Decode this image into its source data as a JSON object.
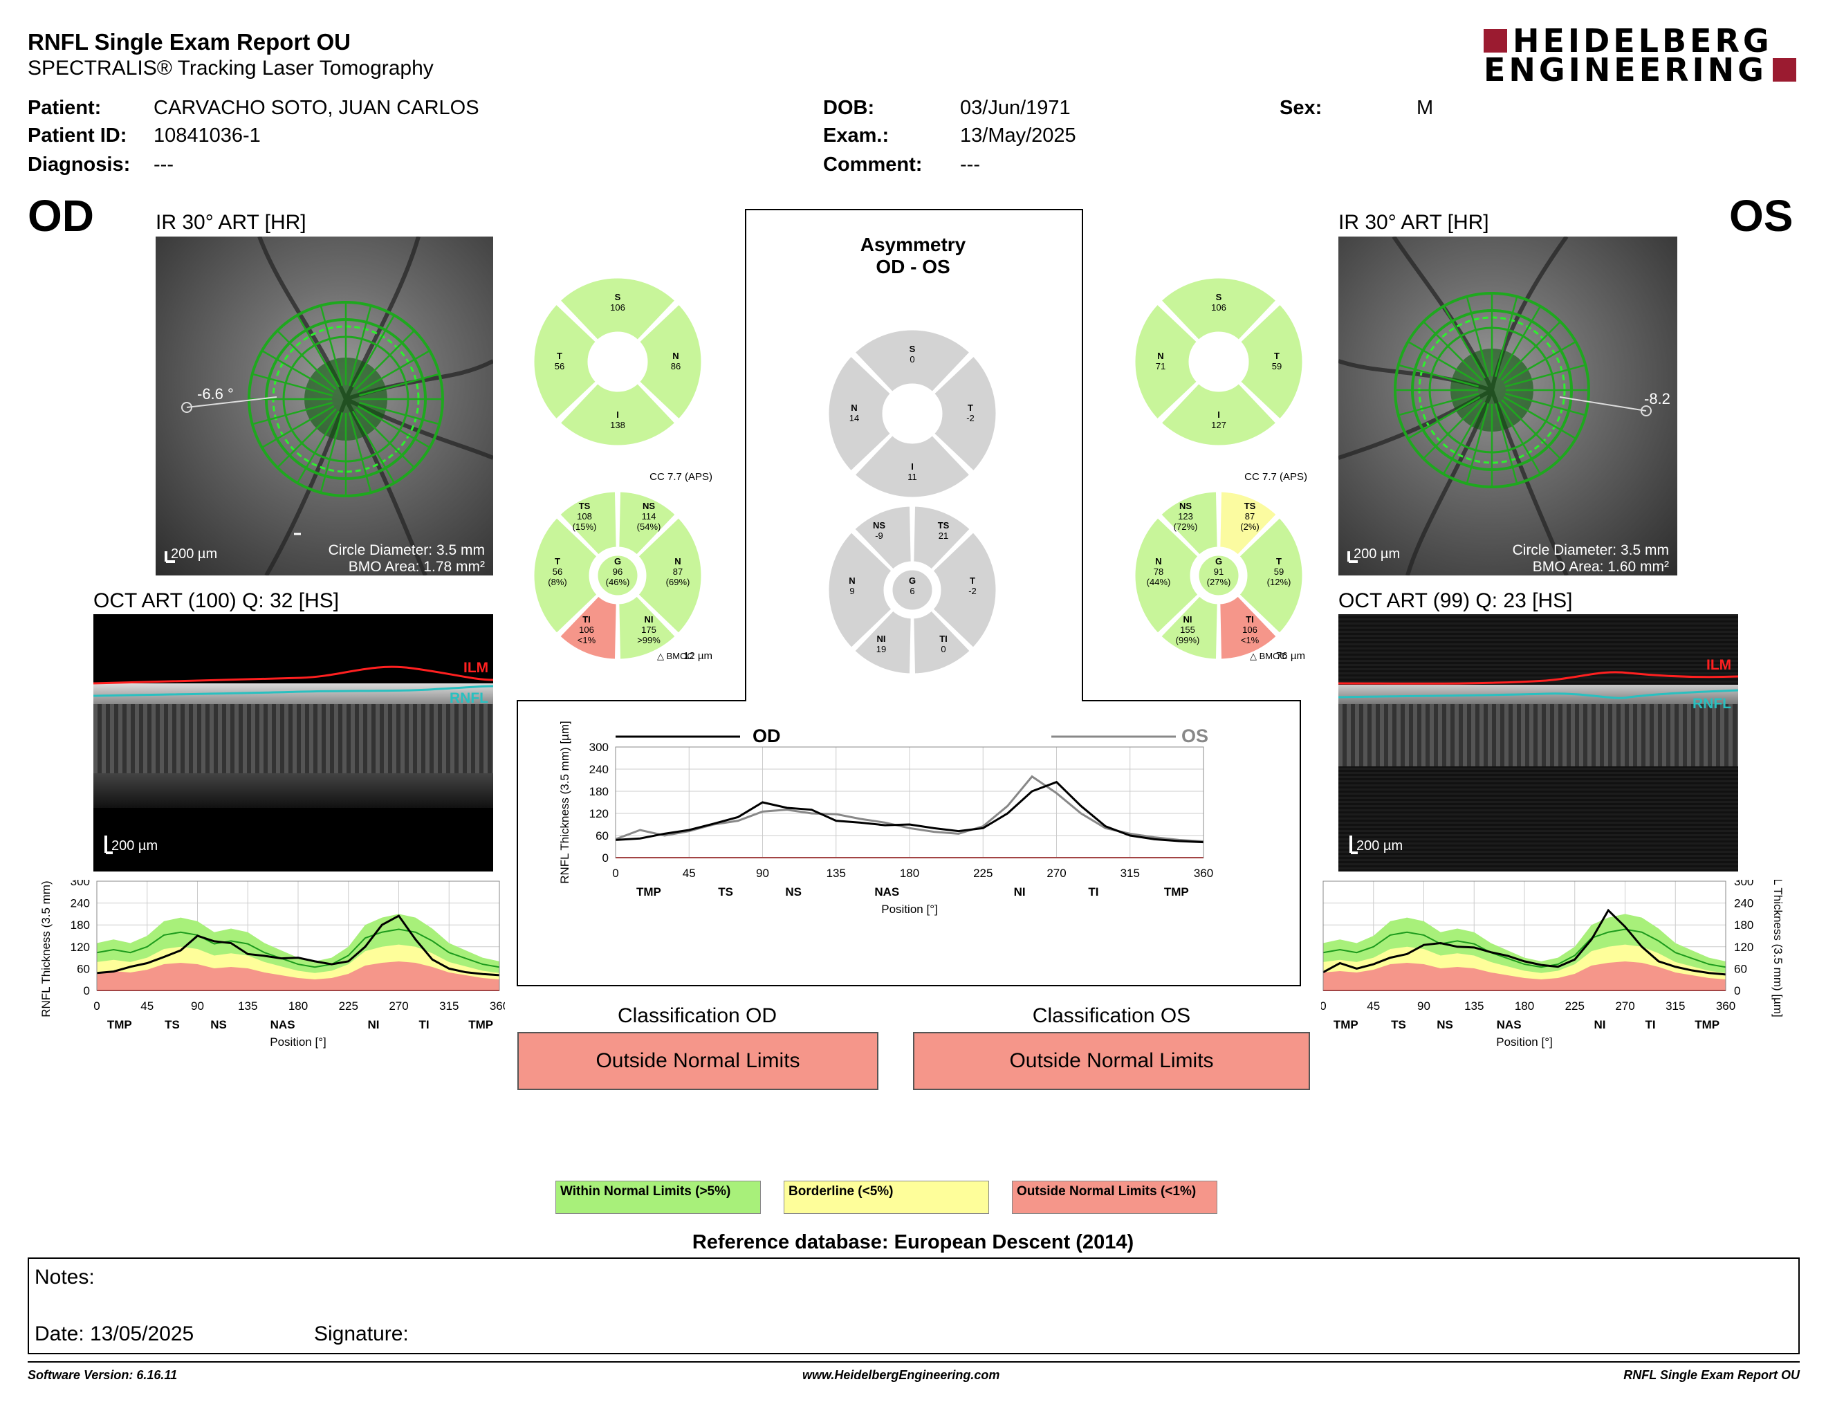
{
  "report": {
    "title": "RNFL Single Exam Report OU",
    "subtitle": "SPECTRALIS® Tracking Laser Tomography",
    "logo_line1": "HEIDELBERG",
    "logo_line2": "ENGINEERING",
    "brand_color": "#9b1b30"
  },
  "patient": {
    "patient_label": "Patient:",
    "patient_name": "CARVACHO SOTO, JUAN CARLOS",
    "id_label": "Patient ID:",
    "id": "10841036-1",
    "diagnosis_label": "Diagnosis:",
    "diagnosis": "---",
    "dob_label": "DOB:",
    "dob": "03/Jun/1971",
    "exam_label": "Exam.:",
    "exam": "13/May/2025",
    "comment_label": "Comment:",
    "comment": "---",
    "sex_label": "Sex:",
    "sex": "M"
  },
  "od": {
    "eye": "OD",
    "ir_title": "IR 30° ART [HR]",
    "angle": "-6.6 °",
    "scale": "200 µm",
    "circle_diameter": "Circle Diameter: 3.5 mm",
    "bmo_area": "BMO Area: 1.78 mm²",
    "oct_title": "OCT ART (100) Q: 32 [HS]",
    "cc": "CC 7.7 (APS)",
    "bmo_offset": "12 µm",
    "quadrants": {
      "S": "106",
      "T": "56",
      "N": "86",
      "I": "138"
    },
    "sectors": {
      "TS": [
        "108",
        "(15%)"
      ],
      "NS": [
        "114",
        "(54%)"
      ],
      "T": [
        "56",
        "(8%)"
      ],
      "G": [
        "96",
        "(46%)"
      ],
      "N": [
        "87",
        "(69%)"
      ],
      "TI": [
        "106",
        "<1%"
      ],
      "NI": [
        "175",
        ">99%"
      ]
    }
  },
  "os": {
    "eye": "OS",
    "ir_title": "IR 30° ART [HR]",
    "angle": "-8.2",
    "scale": "200 µm",
    "circle_diameter": "Circle Diameter: 3.5 mm",
    "bmo_area": "BMO Area: 1.60 mm²",
    "oct_title": "OCT ART (99) Q: 23 [HS]",
    "cc": "CC 7.7 (APS)",
    "bmo_offset": "76 µm",
    "quadrants": {
      "S": "106",
      "N": "71",
      "T": "59",
      "I": "127"
    },
    "sectors": {
      "NS": [
        "123",
        "(72%)"
      ],
      "TS": [
        "87",
        "(2%)"
      ],
      "N": [
        "78",
        "(44%)"
      ],
      "G": [
        "91",
        "(27%)"
      ],
      "T": [
        "59",
        "(12%)"
      ],
      "NI": [
        "155",
        "(99%)"
      ],
      "TI": [
        "106",
        "<1%"
      ]
    }
  },
  "asym": {
    "title1": "Asymmetry",
    "title2": "OD - OS",
    "quadrants": {
      "S": "0",
      "N": "14",
      "T": "-2",
      "I": "11"
    },
    "sectors": {
      "NS": "-9",
      "TS": "21",
      "N": "9",
      "G": "6",
      "T": "-2",
      "NI": "19",
      "TI": "0"
    }
  },
  "bmo_label": "BMOC",
  "oct_labels": {
    "ilm": "ILM",
    "rnfl": "RNFL"
  },
  "chart_axis": {
    "ylabel": "RNFL Thickness (3.5 mm) [µm]",
    "xlabel": "Position [°]",
    "yticks": [
      "0",
      "60",
      "120",
      "180",
      "240",
      "300"
    ],
    "xticks": [
      "0",
      "45",
      "90",
      "135",
      "180",
      "225",
      "270",
      "315",
      "360"
    ],
    "regions": [
      "TMP",
      "TS",
      "NS",
      "NAS",
      "NI",
      "TI",
      "TMP"
    ]
  },
  "compare_legend": {
    "od": "OD",
    "os": "OS"
  },
  "classification": {
    "od_title": "Classification OD",
    "od_value": "Outside Normal Limits",
    "os_title": "Classification OS",
    "os_value": "Outside Normal Limits"
  },
  "legend": {
    "within": "Within Normal Limits (>5%)",
    "borderline": "Borderline (<5%)",
    "outside": "Outside Normal Limits (<1%)",
    "colors": {
      "within": "#a8f07a",
      "borderline": "#fefe9a",
      "outside": "#f5968a",
      "sector_green": "#c8f59a",
      "sector_red": "#f5968a",
      "sector_yellow": "#fbfba0",
      "sector_grey": "#d3d3d3"
    }
  },
  "reference": "Reference database: European Descent (2014)",
  "notes": {
    "notes_label": "Notes:",
    "date_label": "Date: 13/05/2025",
    "signature_label": "Signature:"
  },
  "footer": {
    "version": "Software Version: 6.16.11",
    "url": "www.HeidelbergEngineering.com",
    "name": "RNFL Single Exam Report OU"
  },
  "chart_data": [
    {
      "type": "line",
      "title": "OD",
      "xlabel": "Position [°]",
      "ylabel": "RNFL Thickness (3.5 mm) [µm]",
      "xlim": [
        0,
        360
      ],
      "ylim": [
        0,
        300
      ],
      "x": [
        0,
        15,
        30,
        45,
        60,
        75,
        90,
        105,
        120,
        135,
        150,
        165,
        180,
        195,
        210,
        225,
        240,
        255,
        270,
        285,
        300,
        315,
        330,
        345,
        360
      ],
      "series": [
        {
          "name": "OD",
          "values": [
            48,
            52,
            65,
            75,
            92,
            110,
            150,
            135,
            130,
            100,
            95,
            88,
            90,
            80,
            72,
            80,
            120,
            180,
            205,
            140,
            85,
            60,
            50,
            45,
            42
          ]
        }
      ]
    },
    {
      "type": "line",
      "title": "OS",
      "xlabel": "Position [°]",
      "ylabel": "RNFL Thickness (3.5 mm) [µm]",
      "xlim": [
        0,
        360
      ],
      "ylim": [
        0,
        300
      ],
      "x": [
        0,
        15,
        30,
        45,
        60,
        75,
        90,
        105,
        120,
        135,
        150,
        165,
        180,
        195,
        210,
        225,
        240,
        255,
        270,
        285,
        300,
        315,
        330,
        345,
        360
      ],
      "series": [
        {
          "name": "OS",
          "values": [
            50,
            75,
            60,
            72,
            90,
            100,
            125,
            130,
            120,
            118,
            105,
            95,
            80,
            70,
            65,
            85,
            140,
            220,
            175,
            120,
            80,
            65,
            55,
            48,
            44
          ]
        }
      ]
    },
    {
      "type": "line",
      "title": "OD vs OS",
      "xlabel": "Position [°]",
      "ylabel": "RNFL Thickness (3.5 mm) [µm]",
      "xlim": [
        0,
        360
      ],
      "ylim": [
        0,
        300
      ],
      "x": [
        0,
        15,
        30,
        45,
        60,
        75,
        90,
        105,
        120,
        135,
        150,
        165,
        180,
        195,
        210,
        225,
        240,
        255,
        270,
        285,
        300,
        315,
        330,
        345,
        360
      ],
      "series": [
        {
          "name": "OD",
          "values": [
            48,
            52,
            65,
            75,
            92,
            110,
            150,
            135,
            130,
            100,
            95,
            88,
            90,
            80,
            72,
            80,
            120,
            180,
            205,
            140,
            85,
            60,
            50,
            45,
            42
          ]
        },
        {
          "name": "OS",
          "values": [
            50,
            75,
            60,
            72,
            90,
            100,
            125,
            130,
            120,
            118,
            105,
            95,
            80,
            70,
            65,
            85,
            140,
            220,
            175,
            120,
            80,
            65,
            55,
            48,
            44
          ]
        }
      ]
    }
  ]
}
